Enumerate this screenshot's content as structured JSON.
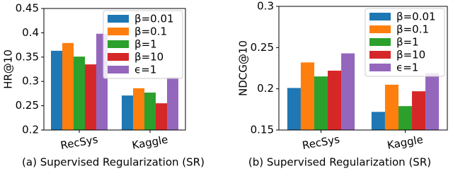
{
  "chart_data": [
    {
      "type": "bar",
      "y_label": "HR@10",
      "caption": "(a) Supervised Regularization (SR)",
      "categories": [
        "RecSys",
        "Kaggle"
      ],
      "series": [
        {
          "name": "β=0.01",
          "color": "#1f77b4",
          "values": [
            0.363,
            0.271
          ]
        },
        {
          "name": "β=0.1",
          "color": "#ff7f0e",
          "values": [
            0.379,
            0.286
          ]
        },
        {
          "name": "β=1",
          "color": "#2ca02c",
          "values": [
            0.351,
            0.277
          ]
        },
        {
          "name": "β=10",
          "color": "#d62728",
          "values": [
            0.335,
            0.255
          ]
        },
        {
          "name": "ϵ=1",
          "color": "#9467bd",
          "values": [
            0.398,
            0.309
          ]
        }
      ],
      "ylim": [
        0.2,
        0.45
      ],
      "yticks": [
        0.2,
        0.25,
        0.3,
        0.35,
        0.4,
        0.45
      ],
      "legend": "upper right"
    },
    {
      "type": "bar",
      "y_label": "NDCG@10",
      "caption": "(b) Supervised Regularization (SR)",
      "categories": [
        "RecSys",
        "Kaggle"
      ],
      "series": [
        {
          "name": "β=0.01",
          "color": "#1f77b4",
          "values": [
            0.201,
            0.172
          ]
        },
        {
          "name": "β=0.1",
          "color": "#ff7f0e",
          "values": [
            0.232,
            0.205
          ]
        },
        {
          "name": "β=1",
          "color": "#2ca02c",
          "values": [
            0.215,
            0.179
          ]
        },
        {
          "name": "β=10",
          "color": "#d62728",
          "values": [
            0.222,
            0.197
          ]
        },
        {
          "name": "ϵ=1",
          "color": "#9467bd",
          "values": [
            0.243,
            0.219
          ]
        }
      ],
      "ylim": [
        0.15,
        0.3
      ],
      "yticks": [
        0.15,
        0.2,
        0.25,
        0.3
      ],
      "legend": "upper right"
    }
  ]
}
